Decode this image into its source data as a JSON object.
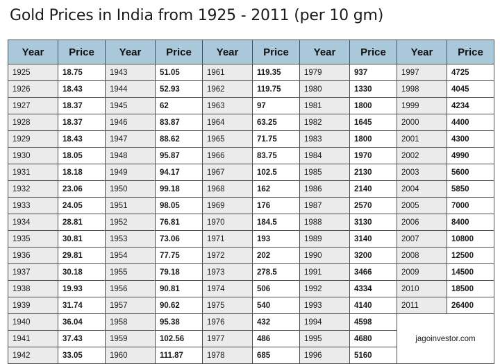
{
  "title": "Gold Prices in India from 1925 - 2011 (per 10 gm)",
  "headers": [
    "Year",
    "Price",
    "Year",
    "Price",
    "Year",
    "Price",
    "Year",
    "Price",
    "Year",
    "Price"
  ],
  "credit": "jagoinvestor.com",
  "columns": [
    {
      "rows": [
        {
          "year": "1925",
          "price": "18.75"
        },
        {
          "year": "1926",
          "price": "18.43"
        },
        {
          "year": "1927",
          "price": "18.37"
        },
        {
          "year": "1928",
          "price": "18.37"
        },
        {
          "year": "1929",
          "price": "18.43"
        },
        {
          "year": "1930",
          "price": "18.05"
        },
        {
          "year": "1931",
          "price": "18.18"
        },
        {
          "year": "1932",
          "price": "23.06"
        },
        {
          "year": "1933",
          "price": "24.05"
        },
        {
          "year": "1934",
          "price": "28.81"
        },
        {
          "year": "1935",
          "price": "30.81"
        },
        {
          "year": "1936",
          "price": "29.81"
        },
        {
          "year": "1937",
          "price": "30.18"
        },
        {
          "year": "1938",
          "price": "19.93"
        },
        {
          "year": "1939",
          "price": "31.74"
        },
        {
          "year": "1940",
          "price": "36.04"
        },
        {
          "year": "1941",
          "price": "37.43"
        },
        {
          "year": "1942",
          "price": "33.05"
        }
      ]
    },
    {
      "rows": [
        {
          "year": "1943",
          "price": "51.05"
        },
        {
          "year": "1944",
          "price": "52.93"
        },
        {
          "year": "1945",
          "price": "62"
        },
        {
          "year": "1946",
          "price": "83.87"
        },
        {
          "year": "1947",
          "price": "88.62"
        },
        {
          "year": "1948",
          "price": "95.87"
        },
        {
          "year": "1949",
          "price": "94.17"
        },
        {
          "year": "1950",
          "price": "99.18"
        },
        {
          "year": "1951",
          "price": "98.05"
        },
        {
          "year": "1952",
          "price": "76.81"
        },
        {
          "year": "1953",
          "price": "73.06"
        },
        {
          "year": "1954",
          "price": "77.75"
        },
        {
          "year": "1955",
          "price": "79.18"
        },
        {
          "year": "1956",
          "price": "90.81"
        },
        {
          "year": "1957",
          "price": "90.62"
        },
        {
          "year": "1958",
          "price": "95.38"
        },
        {
          "year": "1959",
          "price": "102.56"
        },
        {
          "year": "1960",
          "price": "111.87"
        }
      ]
    },
    {
      "rows": [
        {
          "year": "1961",
          "price": "119.35"
        },
        {
          "year": "1962",
          "price": "119.75"
        },
        {
          "year": "1963",
          "price": "97"
        },
        {
          "year": "1964",
          "price": "63.25"
        },
        {
          "year": "1965",
          "price": "71.75"
        },
        {
          "year": "1966",
          "price": "83.75"
        },
        {
          "year": "1967",
          "price": "102.5"
        },
        {
          "year": "1968",
          "price": "162"
        },
        {
          "year": "1969",
          "price": "176"
        },
        {
          "year": "1970",
          "price": "184.5"
        },
        {
          "year": "1971",
          "price": "193"
        },
        {
          "year": "1972",
          "price": "202"
        },
        {
          "year": "1973",
          "price": "278.5"
        },
        {
          "year": "1974",
          "price": "506"
        },
        {
          "year": "1975",
          "price": "540"
        },
        {
          "year": "1976",
          "price": "432"
        },
        {
          "year": "1977",
          "price": "486"
        },
        {
          "year": "1978",
          "price": "685"
        }
      ]
    },
    {
      "rows": [
        {
          "year": "1979",
          "price": "937"
        },
        {
          "year": "1980",
          "price": "1330"
        },
        {
          "year": "1981",
          "price": "1800"
        },
        {
          "year": "1982",
          "price": "1645"
        },
        {
          "year": "1983",
          "price": "1800"
        },
        {
          "year": "1984",
          "price": "1970"
        },
        {
          "year": "1985",
          "price": "2130"
        },
        {
          "year": "1986",
          "price": "2140"
        },
        {
          "year": "1987",
          "price": "2570"
        },
        {
          "year": "1988",
          "price": "3130"
        },
        {
          "year": "1989",
          "price": "3140"
        },
        {
          "year": "1990",
          "price": "3200"
        },
        {
          "year": "1991",
          "price": "3466"
        },
        {
          "year": "1992",
          "price": "4334"
        },
        {
          "year": "1993",
          "price": "4140"
        },
        {
          "year": "1994",
          "price": "4598"
        },
        {
          "year": "1995",
          "price": "4680"
        },
        {
          "year": "1996",
          "price": "5160"
        }
      ]
    },
    {
      "rows": [
        {
          "year": "1997",
          "price": "4725"
        },
        {
          "year": "1998",
          "price": "4045"
        },
        {
          "year": "1999",
          "price": "4234"
        },
        {
          "year": "2000",
          "price": "4400"
        },
        {
          "year": "2001",
          "price": "4300"
        },
        {
          "year": "2002",
          "price": "4990"
        },
        {
          "year": "2003",
          "price": "5600"
        },
        {
          "year": "2004",
          "price": "5850"
        },
        {
          "year": "2005",
          "price": "7000"
        },
        {
          "year": "2006",
          "price": "8400"
        },
        {
          "year": "2007",
          "price": "10800"
        },
        {
          "year": "2008",
          "price": "12500"
        },
        {
          "year": "2009",
          "price": "14500"
        },
        {
          "year": "2010",
          "price": "18500"
        },
        {
          "year": "2011",
          "price": "26400"
        }
      ]
    }
  ]
}
